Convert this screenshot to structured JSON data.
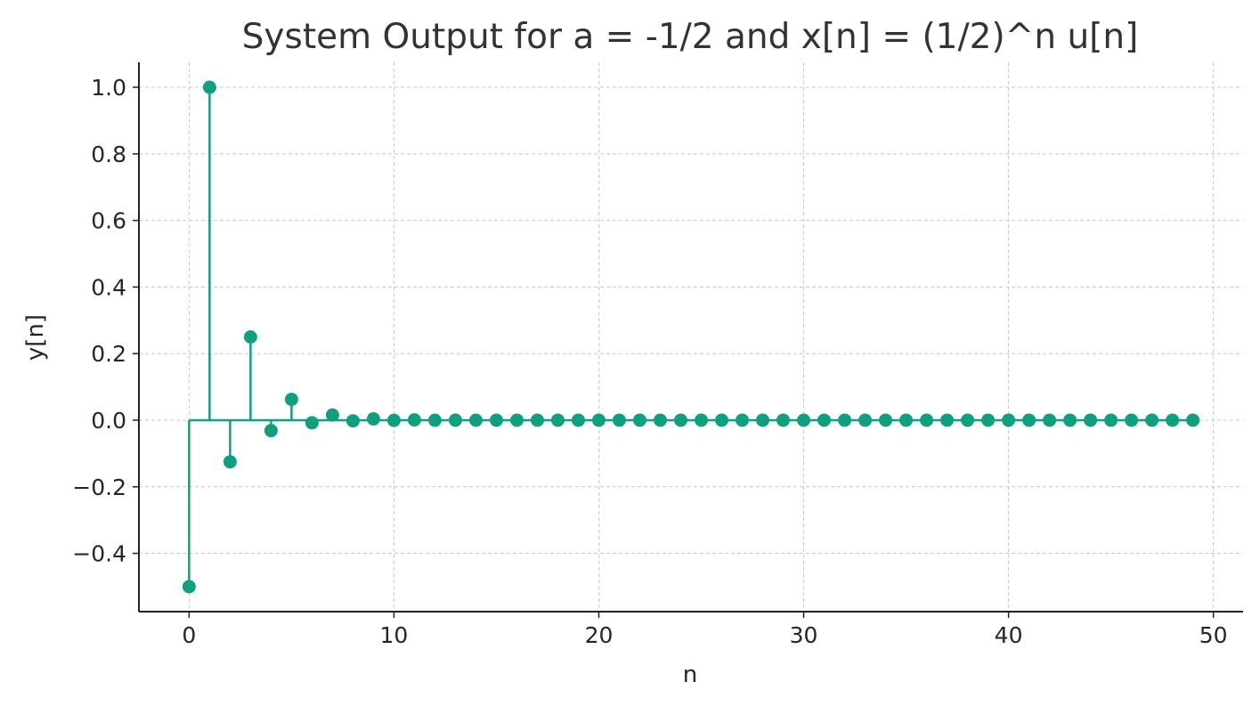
{
  "chart_data": {
    "type": "stem",
    "title": "System Output for a = -1/2 and x[n] = (1/2)^n u[n]",
    "xlabel": "n",
    "ylabel": "y[n]",
    "xlim": [
      -2.45,
      51.45
    ],
    "ylim": [
      -0.575,
      1.075
    ],
    "x_ticks": [
      0,
      10,
      20,
      30,
      40,
      50
    ],
    "x_tick_labels": [
      "0",
      "10",
      "20",
      "30",
      "40",
      "50"
    ],
    "y_ticks": [
      -0.4,
      -0.2,
      0.0,
      0.2,
      0.4,
      0.6,
      0.8,
      1.0
    ],
    "y_tick_labels": [
      "−0.4",
      "−0.2",
      "0.0",
      "0.2",
      "0.4",
      "0.6",
      "0.8",
      "1.0"
    ],
    "grid": true,
    "baseline": 0,
    "color": "#11a07f",
    "series": [
      {
        "x": [
          0,
          1,
          2,
          3,
          4,
          5,
          6,
          7,
          8,
          9,
          10,
          11,
          12,
          13,
          14,
          15,
          16,
          17,
          18,
          19,
          20,
          21,
          22,
          23,
          24,
          25,
          26,
          27,
          28,
          29,
          30,
          31,
          32,
          33,
          34,
          35,
          36,
          37,
          38,
          39,
          40,
          41,
          42,
          43,
          44,
          45,
          46,
          47,
          48,
          49
        ],
        "values": [
          -0.5,
          1.0,
          -0.125,
          0.25,
          -0.03125,
          0.0625,
          -0.0078125,
          0.015625,
          -0.001953,
          0.003906,
          -0.000488,
          0.000977,
          -0.000122,
          0.000244,
          -3.05e-05,
          6.1e-05,
          -7.6e-06,
          1.53e-05,
          -1.9e-06,
          3.8e-06,
          -5e-07,
          9.5e-07,
          -1e-07,
          2e-07,
          0,
          0,
          0,
          0,
          0,
          0,
          0,
          0,
          0,
          0,
          0,
          0,
          0,
          0,
          0,
          0,
          0,
          0,
          0,
          0,
          0,
          0,
          0,
          0,
          0,
          0
        ]
      }
    ]
  }
}
